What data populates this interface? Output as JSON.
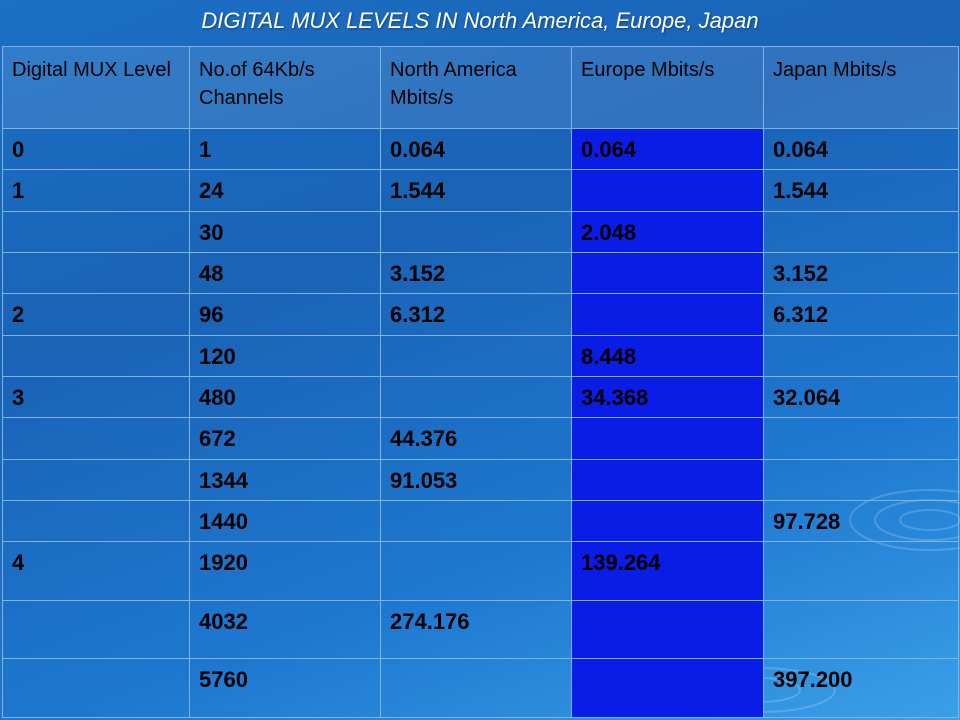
{
  "title": "DIGITAL MUX LEVELS IN North America, Europe, Japan",
  "colors": {
    "europe_column": "#0a1de6",
    "background": "#1b6fc4",
    "title_text": "#ffffff"
  },
  "headers": [
    "Digital MUX Level",
    "No.of 64Kb/s Channels",
    "North America Mbits/s",
    "Europe Mbits/s",
    "Japan Mbits/s"
  ],
  "rows": [
    [
      "0",
      "1",
      "0.064",
      "0.064",
      "0.064"
    ],
    [
      "1",
      "24",
      "1.544",
      "",
      "1.544"
    ],
    [
      "",
      "30",
      "",
      "2.048",
      ""
    ],
    [
      "",
      "48",
      "3.152",
      "",
      "3.152"
    ],
    [
      "2",
      "96",
      "6.312",
      "",
      "6.312"
    ],
    [
      "",
      "120",
      "",
      "8.448",
      ""
    ],
    [
      "3",
      "480",
      "",
      "34.368",
      "32.064"
    ],
    [
      "",
      "672",
      "44.376",
      "",
      ""
    ],
    [
      "",
      "1344",
      "91.053",
      "",
      ""
    ],
    [
      "",
      "1440",
      "",
      "",
      "97.728"
    ],
    [
      "4",
      "1920",
      "",
      "139.264",
      ""
    ],
    [
      "",
      "4032",
      "274.176",
      "",
      ""
    ],
    [
      "",
      "5760",
      "",
      "",
      "397.200"
    ]
  ]
}
